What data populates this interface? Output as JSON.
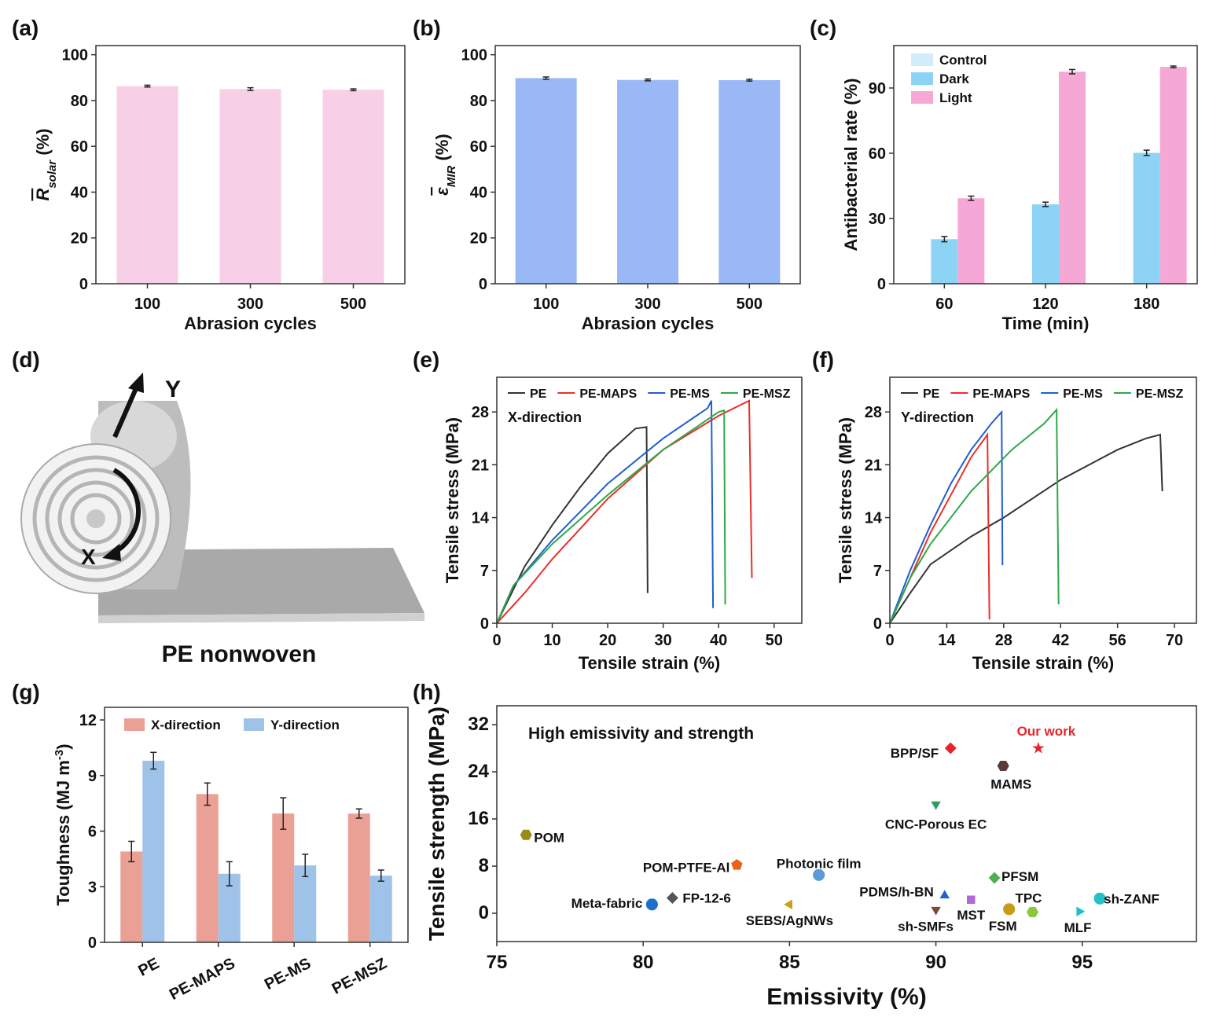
{
  "chart_data": [
    {
      "type": "bar",
      "panel": "(a)",
      "ylabel": [
        {
          "text": "R",
          "italic": true,
          "overline": true
        },
        {
          "text": "solar",
          "italic": true,
          "shift": "sub"
        },
        {
          "text": " (%)"
        }
      ],
      "xlabel": "Abrasion cycles",
      "categories": [
        "100",
        "300",
        "500"
      ],
      "values": [
        86.3,
        85.0,
        84.7
      ],
      "errors": [
        0.4,
        0.6,
        0.4
      ],
      "color": "#f7cfe6",
      "ylim": [
        0,
        104
      ],
      "yticks": [
        0,
        20,
        40,
        60,
        80,
        100
      ]
    },
    {
      "type": "bar",
      "panel": "(b)",
      "ylabel": [
        {
          "text": "ε",
          "italic": true,
          "overline": true
        },
        {
          "text": "MIR",
          "italic": true,
          "shift": "sub"
        },
        {
          "text": " (%)"
        }
      ],
      "xlabel": "Abrasion cycles",
      "categories": [
        "100",
        "300",
        "500"
      ],
      "values": [
        89.8,
        89.0,
        88.9
      ],
      "errors": [
        0.5,
        0.4,
        0.4
      ],
      "color": "#9ab8f5",
      "ylim": [
        0,
        104
      ],
      "yticks": [
        0,
        20,
        40,
        60,
        80,
        100
      ]
    },
    {
      "type": "bar",
      "panel": "(c)",
      "ylabel": [
        {
          "text": "Antibacterial rate (%)"
        }
      ],
      "xlabel": "Time (min)",
      "categories": [
        "60",
        "120",
        "180"
      ],
      "series": [
        {
          "name": "Control",
          "color": "#d2ecfa",
          "values": [
            0,
            0,
            0
          ],
          "errors": [
            0,
            0,
            0
          ]
        },
        {
          "name": "Dark",
          "color": "#8dd3f5",
          "values": [
            20.5,
            36.5,
            60.2
          ],
          "errors": [
            1.2,
            1.0,
            1.2
          ]
        },
        {
          "name": "Light",
          "color": "#f5a8d6",
          "values": [
            39.3,
            97.5,
            99.7
          ],
          "errors": [
            1.0,
            1.0,
            0.4
          ]
        }
      ],
      "ylim": [
        0,
        109.5
      ],
      "yticks": [
        0,
        30,
        60,
        90
      ],
      "legend": "upper-left"
    },
    {
      "type": "line",
      "panel": "(e)",
      "ylabel": [
        {
          "text": "Tensile stress (MPa)"
        }
      ],
      "xlabel": "Tensile strain (%)",
      "annotation": "X-direction",
      "series": [
        {
          "name": "PE",
          "color": "#333333",
          "x": [
            0,
            5,
            10,
            15,
            20,
            25,
            27,
            27.2
          ],
          "values": [
            0,
            7.5,
            13,
            18,
            22.5,
            25.8,
            26,
            4
          ]
        },
        {
          "name": "PE-MAPS",
          "color": "#e8302a",
          "x": [
            0,
            5,
            10,
            20,
            30,
            40,
            45.5,
            46
          ],
          "values": [
            0,
            4,
            8.5,
            16.5,
            23,
            27.5,
            29.5,
            6
          ]
        },
        {
          "name": "PE-MS",
          "color": "#1f5fd0",
          "x": [
            0,
            3,
            10,
            20,
            30,
            38,
            38.7,
            39
          ],
          "values": [
            0,
            5,
            11,
            18.5,
            24.5,
            28.5,
            29.5,
            2
          ]
        },
        {
          "name": "PE-MSZ",
          "color": "#2ea84a",
          "x": [
            0,
            3,
            10,
            20,
            30,
            40,
            41,
            41.2
          ],
          "values": [
            0,
            5,
            10.5,
            17,
            23,
            28,
            28.2,
            2.5
          ]
        }
      ],
      "xlim": [
        0,
        55
      ],
      "xticks": [
        0,
        10,
        20,
        30,
        40,
        50
      ],
      "ylim": [
        0,
        32.6
      ],
      "yticks": [
        0,
        7,
        14,
        21,
        28
      ]
    },
    {
      "type": "line",
      "panel": "(f)",
      "ylabel": [
        {
          "text": "Tensile stress (MPa)"
        }
      ],
      "xlabel": "Tensile strain (%)",
      "annotation": "Y-direction",
      "series": [
        {
          "name": "PE",
          "color": "#333333",
          "x": [
            0,
            5,
            10,
            20,
            28,
            42,
            56,
            63,
            66.5,
            67
          ],
          "values": [
            0,
            4,
            7.8,
            11.5,
            14,
            19,
            23,
            24.5,
            25,
            17.5
          ]
        },
        {
          "name": "PE-MAPS",
          "color": "#e8302a",
          "x": [
            0,
            5,
            10,
            15,
            20,
            24,
            24.5
          ],
          "values": [
            0,
            6,
            12,
            17,
            22,
            25,
            0.5
          ]
        },
        {
          "name": "PE-MS",
          "color": "#1f5fd0",
          "x": [
            0,
            5,
            10,
            15,
            20,
            25,
            27.5,
            27.7
          ],
          "values": [
            0,
            7,
            13,
            18.5,
            23,
            26.5,
            28,
            7.7
          ]
        },
        {
          "name": "PE-MSZ",
          "color": "#2ea84a",
          "x": [
            0,
            5,
            10,
            20,
            30,
            38,
            41,
            41.5
          ],
          "values": [
            0,
            6,
            10.5,
            17.5,
            23,
            26.5,
            28.3,
            2.5
          ]
        }
      ],
      "xlim": [
        0,
        75.4
      ],
      "xticks": [
        0,
        14,
        28,
        42,
        56,
        70
      ],
      "ylim": [
        0,
        32.6
      ],
      "yticks": [
        0,
        7,
        14,
        21,
        28
      ]
    },
    {
      "type": "bar",
      "panel": "(g)",
      "ylabel": [
        {
          "text": "Toughness (MJ m"
        },
        {
          "text": "-3",
          "shift": "super"
        },
        {
          "text": ")"
        }
      ],
      "rotate_categories": true,
      "categories": [
        "PE",
        "PE-MAPS",
        "PE-MS",
        "PE-MSZ"
      ],
      "series": [
        {
          "name": "X-direction",
          "color": "#eba095",
          "values": [
            4.9,
            8.0,
            6.95,
            6.95
          ],
          "errors": [
            0.55,
            0.6,
            0.85,
            0.25
          ]
        },
        {
          "name": "Y-direction",
          "color": "#9fc3e8",
          "values": [
            9.8,
            3.7,
            4.15,
            3.6
          ],
          "errors": [
            0.45,
            0.65,
            0.6,
            0.3
          ]
        }
      ],
      "ylim": [
        0,
        12.68
      ],
      "yticks": [
        0,
        3,
        6,
        9,
        12
      ],
      "legend": "top"
    },
    {
      "type": "scatter",
      "panel": "(h)",
      "ylabel": [
        {
          "text": "Tensile strength (MPa)"
        }
      ],
      "xlabel": "Emissivity (%)",
      "annotation": "High emissivity and strength",
      "points": [
        {
          "name": "Our work",
          "x": 93.5,
          "y": 28,
          "color": "#e8242a",
          "marker": "star",
          "label_color": "#e8242a"
        },
        {
          "name": "BPP/SF",
          "x": 90.5,
          "y": 28,
          "color": "#e8242a",
          "marker": "diamond"
        },
        {
          "name": "MAMS",
          "x": 92.3,
          "y": 25,
          "color": "#5b3a3a",
          "marker": "hexagon"
        },
        {
          "name": "CNC-Porous EC",
          "x": 90,
          "y": 18.5,
          "color": "#2e9e5e",
          "marker": "triangle-down"
        },
        {
          "name": "POM",
          "x": 76,
          "y": 13.3,
          "color": "#9a8a1a",
          "marker": "hexagon"
        },
        {
          "name": "POM-PTFE-Al",
          "x": 83.2,
          "y": 8.2,
          "color": "#e8621a",
          "marker": "pentagon"
        },
        {
          "name": "Photonic film",
          "x": 86,
          "y": 6.5,
          "color": "#5b9bd5",
          "marker": "circle"
        },
        {
          "name": "PFSM",
          "x": 92,
          "y": 6,
          "color": "#4cb050",
          "marker": "diamond"
        },
        {
          "name": "PDMS/h-BN",
          "x": 90.3,
          "y": 3,
          "color": "#1f63c8",
          "marker": "triangle-up"
        },
        {
          "name": "MST",
          "x": 91.2,
          "y": 2.3,
          "color": "#b06ad4",
          "marker": "square"
        },
        {
          "name": "TPC",
          "x": 93.3,
          "y": 0.2,
          "color": "#8bc83c",
          "marker": "hexagon"
        },
        {
          "name": "FSM",
          "x": 92.5,
          "y": 0.7,
          "color": "#c89a1a",
          "marker": "circle"
        },
        {
          "name": "sh-SMFs",
          "x": 90,
          "y": 0.6,
          "color": "#7a4a3a",
          "marker": "triangle-down"
        },
        {
          "name": "sh-ZANF",
          "x": 95.6,
          "y": 2.5,
          "color": "#25c0c8",
          "marker": "circle"
        },
        {
          "name": "MLF",
          "x": 94.9,
          "y": 0.3,
          "color": "#18c0d0",
          "marker": "triangle-right"
        },
        {
          "name": "Meta-fabric",
          "x": 80.3,
          "y": 1.5,
          "color": "#1f6fd0",
          "marker": "circle"
        },
        {
          "name": "FP-12-6",
          "x": 81,
          "y": 2.6,
          "color": "#555555",
          "marker": "diamond"
        },
        {
          "name": "SEBS/AgNWs",
          "x": 85,
          "y": 1.5,
          "color": "#c8a01a",
          "marker": "triangle-left"
        }
      ],
      "xlim": [
        75,
        98.9
      ],
      "xticks": [
        75,
        80,
        85,
        90,
        95
      ],
      "ylim": [
        -4.8,
        35.2
      ],
      "yticks": [
        0,
        8,
        16,
        24,
        32
      ]
    }
  ],
  "diagram": {
    "panel": "(d)",
    "axis_y": "Y",
    "axis_x": "X",
    "caption": "PE nonwoven"
  }
}
